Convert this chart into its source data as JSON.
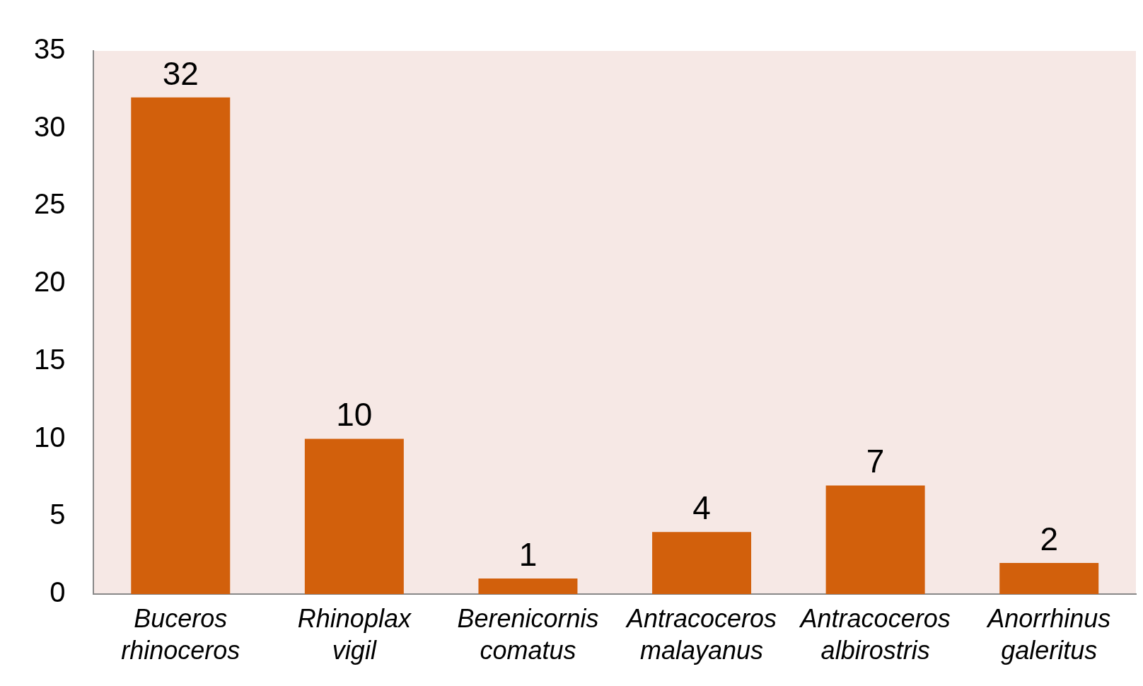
{
  "chart_data": {
    "type": "bar",
    "categories": [
      "Buceros rhinoceros",
      "Rhinoplax vigil",
      "Berenicornis comatus",
      "Antracoceros malayanus",
      "Antracoceros albirostris",
      "Anorrhinus galeritus"
    ],
    "values": [
      32,
      10,
      1,
      4,
      7,
      2
    ],
    "color": "#d2600c",
    "ylim": [
      0,
      35
    ],
    "yticks": [
      0,
      5,
      10,
      15,
      20,
      25,
      30,
      35
    ],
    "grid": false,
    "data_labels": true
  }
}
